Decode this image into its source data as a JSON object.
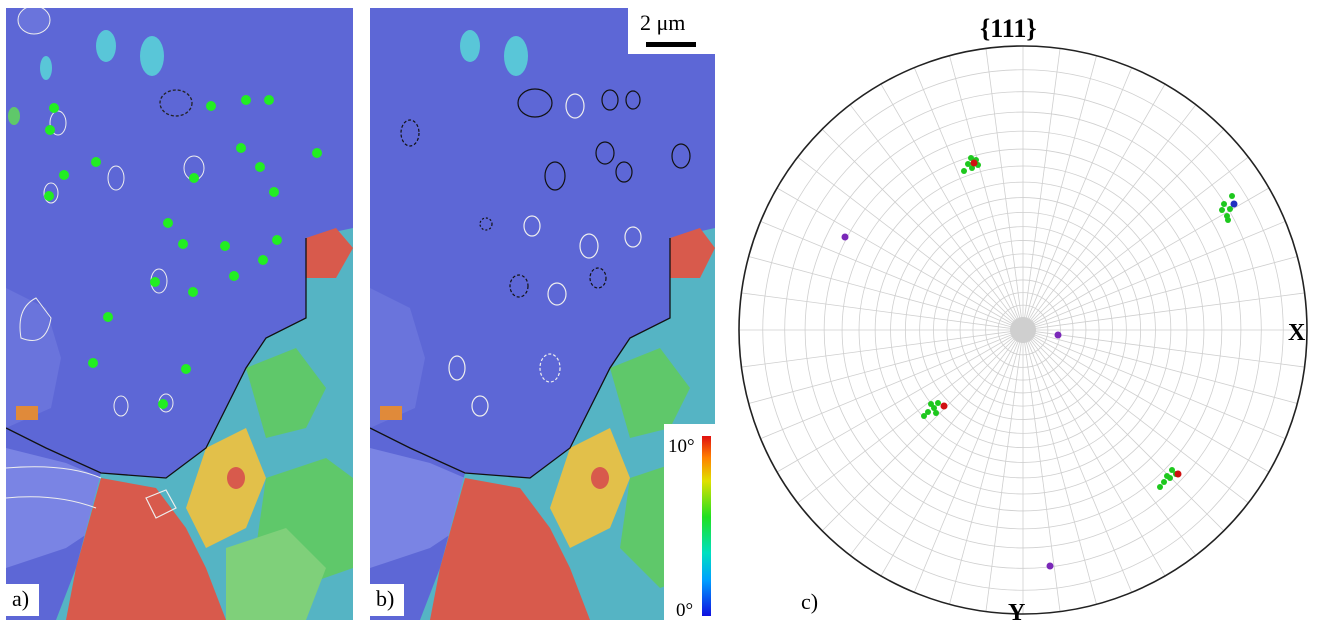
{
  "panels": {
    "a": {
      "label": "a)"
    },
    "b": {
      "label": "b)"
    },
    "c": {
      "label": "c)"
    }
  },
  "scale_bar": {
    "text": "2 μm"
  },
  "color_key": {
    "max_label": "10°",
    "min_label": "0°"
  },
  "pole_figure": {
    "title": "{111}",
    "x_axis": "X",
    "y_axis": "Y"
  },
  "colors": {
    "matrix": "#5d67d6",
    "matrix_light": "#7a84e4",
    "grain_cyan": "#59c6d8",
    "grain_green": "#5fc86a",
    "grain_yellow": "#e2c04a",
    "grain_red": "#d85a4c",
    "marker_green": "#22ee22",
    "pf_green": "#1ec81e",
    "pf_red": "#d01010",
    "pf_purple": "#7a28b8",
    "pf_blue": "#2030c0",
    "grid": "#cfcfcf"
  }
}
